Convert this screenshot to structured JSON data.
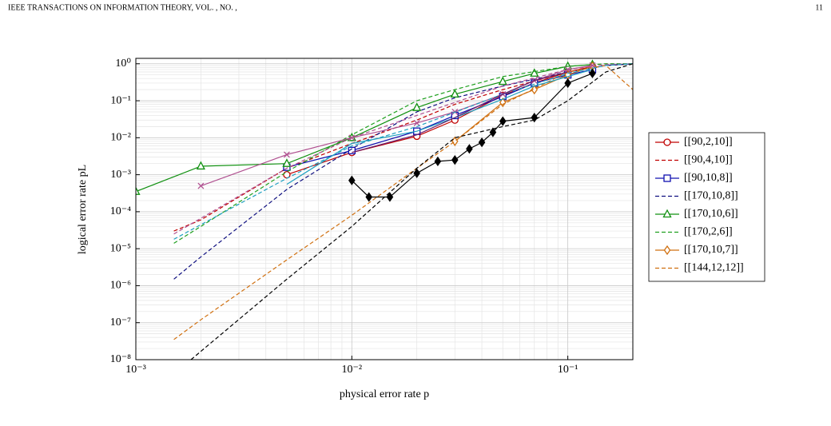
{
  "header": {
    "journal": "IEEE TRANSACTIONS ON INFORMATION THEORY, VOL. , NO. ,",
    "page": "11"
  },
  "chart_data": {
    "type": "line",
    "xlabel": "physical error rate p",
    "ylabel": "logical error rate pL",
    "log_x": true,
    "log_y": true,
    "grid": true,
    "legend": "outside right",
    "xlim": [
      0.001,
      0.2
    ],
    "ylim": [
      1e-08,
      1.4
    ],
    "xticks": [
      {
        "value": 0.001,
        "label": "10⁻³"
      },
      {
        "value": 0.01,
        "label": "10⁻²"
      },
      {
        "value": 0.1,
        "label": "10⁻¹"
      }
    ],
    "yticks": [
      {
        "value": 1e-08,
        "label": "10⁻⁸"
      },
      {
        "value": 1e-07,
        "label": "10⁻⁷"
      },
      {
        "value": 1e-06,
        "label": "10⁻⁶"
      },
      {
        "value": 1e-05,
        "label": "10⁻⁵"
      },
      {
        "value": 0.0001,
        "label": "10⁻⁴"
      },
      {
        "value": 0.001,
        "label": "10⁻³"
      },
      {
        "value": 0.01,
        "label": "10⁻²"
      },
      {
        "value": 0.1,
        "label": "10⁻¹"
      },
      {
        "value": 1,
        "label": "10⁰"
      }
    ],
    "series": [
      {
        "name": "[[90,2,10]]",
        "color": "#c00000",
        "dashed": false,
        "marker": "circle",
        "x": [
          0.005,
          0.01,
          0.02,
          0.03,
          0.05,
          0.07,
          0.1,
          0.13
        ],
        "values": [
          0.001,
          0.004,
          0.011,
          0.03,
          0.14,
          0.3,
          0.6,
          0.85
        ]
      },
      {
        "name": "[[90,4,10]]",
        "color": "#c00000",
        "dashed": true,
        "marker": "none",
        "x": [
          0.0015,
          0.002,
          0.005,
          0.01,
          0.02,
          0.03,
          0.05,
          0.1,
          0.15,
          0.2
        ],
        "values": [
          3e-05,
          6e-05,
          0.0015,
          0.007,
          0.03,
          0.08,
          0.2,
          0.6,
          0.9,
          1
        ]
      },
      {
        "name": "[[90,10,8]]",
        "color": "#1010b0",
        "dashed": false,
        "marker": "square",
        "x": [
          0.005,
          0.01,
          0.02,
          0.03,
          0.05,
          0.07,
          0.1,
          0.13
        ],
        "values": [
          0.0016,
          0.0045,
          0.015,
          0.04,
          0.13,
          0.3,
          0.5,
          0.7
        ]
      },
      {
        "name": "[[170,10,8]]",
        "color": "#101080",
        "dashed": true,
        "marker": "none",
        "x": [
          0.0015,
          0.002,
          0.005,
          0.01,
          0.02,
          0.03,
          0.05,
          0.1,
          0.15,
          0.2
        ],
        "values": [
          1.5e-06,
          6e-06,
          0.0004,
          0.005,
          0.05,
          0.12,
          0.25,
          0.6,
          0.9,
          1
        ]
      },
      {
        "name": "[[170,10,6]]",
        "color": "#109010",
        "dashed": false,
        "marker": "triangle",
        "x": [
          0.001,
          0.002,
          0.005,
          0.01,
          0.02,
          0.03,
          0.05,
          0.07,
          0.1,
          0.13
        ],
        "values": [
          0.00035,
          0.0017,
          0.002,
          0.01,
          0.065,
          0.15,
          0.33,
          0.55,
          0.85,
          0.95
        ]
      },
      {
        "name": "[[170,2,6]]",
        "color": "#20a020",
        "dashed": true,
        "marker": "none",
        "x": [
          0.0015,
          0.002,
          0.005,
          0.01,
          0.02,
          0.03,
          0.05,
          0.1,
          0.15,
          0.2
        ],
        "values": [
          1.4e-05,
          4e-05,
          0.0012,
          0.012,
          0.1,
          0.2,
          0.45,
          0.85,
          1,
          1
        ]
      },
      {
        "name": "[[170,10,7]]",
        "color": "#d07010",
        "dashed": false,
        "marker": "diamond",
        "x": [
          0.03,
          0.05,
          0.07,
          0.1,
          0.13
        ],
        "values": [
          0.008,
          0.09,
          0.2,
          0.5,
          0.85
        ]
      },
      {
        "name": "[[144,12,12]]",
        "color": "#d07010",
        "dashed": true,
        "marker": "none",
        "x": [
          0.0015,
          0.002,
          0.005,
          0.01,
          0.02,
          0.03,
          0.05,
          0.1,
          0.15,
          0.2
        ],
        "values": [
          3.5e-08,
          1.2e-07,
          5e-06,
          8e-05,
          0.0015,
          0.008,
          0.08,
          0.6,
          0.9,
          0.2
        ]
      },
      {
        "color": "#b05090",
        "dashed": false,
        "marker": "cross",
        "x": [
          0.002,
          0.005,
          0.01,
          0.02,
          0.03,
          0.05,
          0.07,
          0.1,
          0.13
        ],
        "values": [
          0.0005,
          0.0035,
          0.01,
          0.025,
          0.05,
          0.15,
          0.35,
          0.7,
          0.9
        ]
      },
      {
        "color": "#b05090",
        "dashed": true,
        "marker": "none",
        "x": [
          0.0015,
          0.005,
          0.01,
          0.02,
          0.05,
          0.1,
          0.15,
          0.2
        ],
        "values": [
          2.5e-05,
          0.0015,
          0.01,
          0.04,
          0.25,
          0.7,
          0.95,
          1
        ]
      },
      {
        "color": "#1fa0c0",
        "dashed": false,
        "marker": "none",
        "x": [
          0.005,
          0.01,
          0.02,
          0.03,
          0.05,
          0.07,
          0.1,
          0.13
        ],
        "values": [
          0.00055,
          0.007,
          0.015,
          0.035,
          0.11,
          0.25,
          0.45,
          0.7
        ]
      },
      {
        "color": "#1fa0c0",
        "dashed": true,
        "marker": "none",
        "x": [
          0.0015,
          0.005,
          0.01,
          0.02,
          0.05,
          0.1,
          0.15,
          0.2
        ],
        "values": [
          1.8e-05,
          0.0008,
          0.006,
          0.02,
          0.15,
          0.55,
          0.9,
          1
        ]
      },
      {
        "color": "#6a1b6a",
        "dashed": false,
        "marker": "none",
        "x": [
          0.01,
          0.02,
          0.03,
          0.05,
          0.07,
          0.1
        ],
        "values": [
          0.004,
          0.012,
          0.035,
          0.15,
          0.35,
          0.6
        ]
      },
      {
        "color": "#000000",
        "dashed": false,
        "marker": "diamond",
        "x": [
          0.01,
          0.012,
          0.015,
          0.02,
          0.025,
          0.03,
          0.035,
          0.04,
          0.045,
          0.05,
          0.07,
          0.1,
          0.13
        ],
        "values": [
          0.0007,
          0.00025,
          0.00025,
          0.0011,
          0.0023,
          0.0025,
          0.005,
          0.0075,
          0.014,
          0.028,
          0.035,
          0.3,
          0.55
        ]
      },
      {
        "color": "#000000",
        "dashed": true,
        "marker": "none",
        "x": [
          0.0018,
          0.005,
          0.01,
          0.02,
          0.03,
          0.05,
          0.07,
          0.1,
          0.15,
          0.2
        ],
        "values": [
          1e-08,
          1.5e-06,
          4e-05,
          0.0015,
          0.01,
          0.02,
          0.03,
          0.1,
          0.6,
          1
        ]
      }
    ]
  }
}
